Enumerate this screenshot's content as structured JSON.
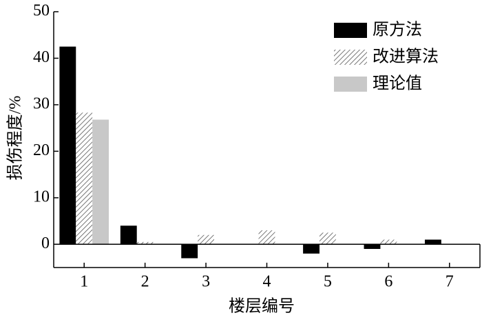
{
  "chart_data": {
    "type": "bar",
    "x_label": "楼层编号",
    "y_label": "损伤程度/%",
    "x": [
      1,
      2,
      3,
      4,
      5,
      6,
      7
    ],
    "series": [
      {
        "name": "原方法",
        "color": "#000000",
        "fill": "solid",
        "values": [
          42.5,
          4,
          -3,
          0,
          -2,
          -1,
          1
        ]
      },
      {
        "name": "改进算法",
        "color": "#555555",
        "fill": "hatch",
        "values": [
          28.3,
          0.5,
          2,
          3,
          2.5,
          1,
          0
        ]
      },
      {
        "name": "理论值",
        "color": "#c8c8c8",
        "fill": "solid",
        "values": [
          26.8,
          0,
          0,
          0,
          0,
          0,
          0
        ]
      }
    ],
    "xlim": [
      0.5,
      7.5
    ],
    "xticks": [
      1,
      2,
      3,
      4,
      5,
      6,
      7
    ],
    "ylim": [
      -5,
      50
    ],
    "yticks": [
      0,
      10,
      20,
      30,
      40,
      50
    ],
    "legend": "upper right"
  }
}
